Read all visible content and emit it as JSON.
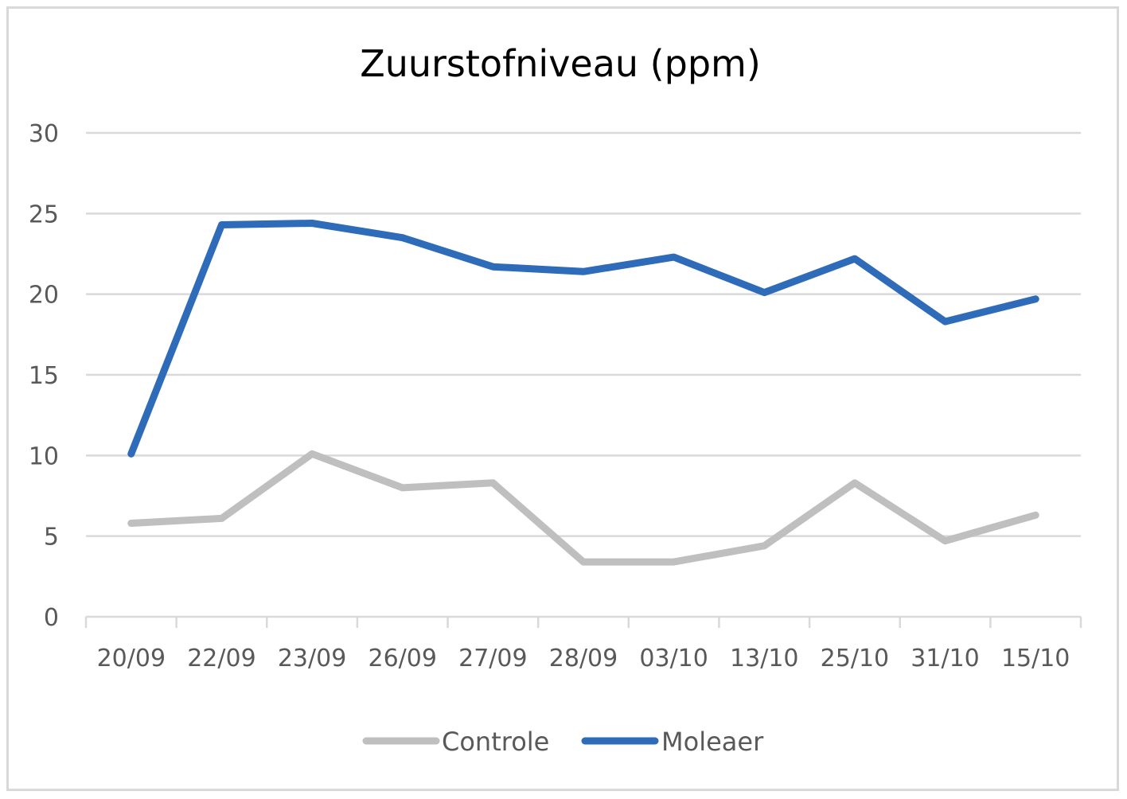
{
  "chart_data": {
    "type": "line",
    "title": "Zuurstofniveau (ppm)",
    "xlabel": "",
    "ylabel": "",
    "categories": [
      "20/09",
      "22/09",
      "23/09",
      "26/09",
      "27/09",
      "28/09",
      "03/10",
      "13/10",
      "25/10",
      "31/10",
      "15/10"
    ],
    "series": [
      {
        "name": "Controle",
        "color": "#bfbfbf",
        "values": [
          5.8,
          6.1,
          10.1,
          8.0,
          8.3,
          3.4,
          3.4,
          4.4,
          8.3,
          4.7,
          6.3
        ]
      },
      {
        "name": "Moleaer",
        "color": "#2e6bb8",
        "values": [
          10.1,
          24.3,
          24.4,
          23.5,
          21.7,
          21.4,
          22.3,
          20.1,
          22.2,
          18.3,
          19.7
        ]
      }
    ],
    "yticks": [
      "0",
      "5",
      "10",
      "15",
      "20",
      "25",
      "30"
    ],
    "ylim": [
      0,
      30
    ],
    "grid": true,
    "legend_position": "bottom"
  }
}
